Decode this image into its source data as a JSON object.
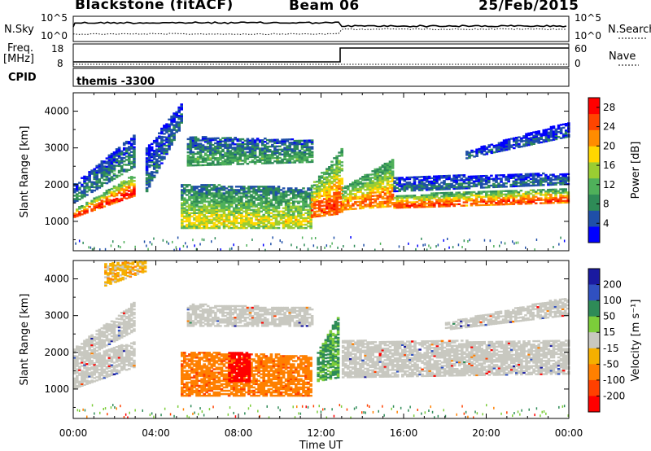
{
  "header": {
    "station": "Blackstone (fitACF)",
    "beam": "Beam 06",
    "date": "25/Feb/2015"
  },
  "left_labels": {
    "nsky": "N.Sky",
    "freq": "Freq.",
    "mhz": "[MHz]",
    "cpid": "CPID"
  },
  "right_labels": {
    "nsearch": "N.Search",
    "nave": "Nave"
  },
  "noise_panel": {
    "ticks_left": [
      "10^5",
      "10^0"
    ],
    "ticks_right": [
      "10^5",
      "10^0"
    ]
  },
  "freq_panel": {
    "ticks_left": [
      "18",
      "8"
    ],
    "ticks_right": [
      "60",
      "0"
    ]
  },
  "cpid_panel": {
    "text": "themis -3300"
  },
  "colors": {
    "power": [
      "#0000ff",
      "#1f4fa8",
      "#2e8b57",
      "#4fb05a",
      "#9acd32",
      "#ffd700",
      "#ff8c00",
      "#ff4500",
      "#ff0000"
    ],
    "velocity": [
      "#1a1aa0",
      "#3050c0",
      "#2e8b57",
      "#7ccd3a",
      "#c8c8c0",
      "#f5b000",
      "#ff8000",
      "#ff4000",
      "#ff0000"
    ],
    "ground_scatter": "#c8c8c0"
  },
  "chart_data": [
    {
      "type": "heatmap",
      "title": "Power",
      "xlabel": "Time UT",
      "ylabel": "Slant Range [km]",
      "x_ticks": [
        "00:00",
        "04:00",
        "08:00",
        "12:00",
        "16:00",
        "20:00",
        "00:00"
      ],
      "y_ticks": [
        1000,
        2000,
        3000,
        4000
      ],
      "xlim_hours": [
        0,
        24
      ],
      "ylim_km": [
        200,
        4500
      ],
      "colorbar": {
        "label": "Power [dB]",
        "ticks": [
          4,
          8,
          12,
          16,
          20,
          24,
          28
        ],
        "range": [
          0,
          30
        ]
      },
      "bands": [
        {
          "t": [
            0,
            3.0
          ],
          "r_start": [
            1100,
            1700
          ],
          "r_end": [
            1300,
            2300
          ],
          "value": 26
        },
        {
          "t": [
            0,
            3.0
          ],
          "r_start": [
            1500,
            2500
          ],
          "r_end": [
            2000,
            3400
          ],
          "value": 8
        },
        {
          "t": [
            3.5,
            5.2
          ],
          "r_start": [
            1800,
            3600
          ],
          "r_end": [
            3000,
            4200
          ],
          "value": 6
        },
        {
          "t": [
            5.2,
            11.5
          ],
          "r_start": [
            800,
            800
          ],
          "r_end": [
            2000,
            1900
          ],
          "value": 16
        },
        {
          "t": [
            5.5,
            11.5
          ],
          "r_start": [
            2500,
            2600
          ],
          "r_end": [
            3300,
            3200
          ],
          "value": 10
        },
        {
          "t": [
            11.5,
            13.0
          ],
          "r_start": [
            1100,
            1200
          ],
          "r_end": [
            2000,
            3000
          ],
          "value": 24
        },
        {
          "t": [
            13.0,
            15.5
          ],
          "r_start": [
            1300,
            1400
          ],
          "r_end": [
            1900,
            2700
          ],
          "value": 22
        },
        {
          "t": [
            15.5,
            24
          ],
          "r_start": [
            1350,
            1500
          ],
          "r_end": [
            1700,
            1900
          ],
          "value": 24
        },
        {
          "t": [
            15.5,
            24
          ],
          "r_start": [
            1800,
            2000
          ],
          "r_end": [
            2200,
            2300
          ],
          "value": 6
        },
        {
          "t": [
            19.0,
            24
          ],
          "r_start": [
            2700,
            3300
          ],
          "r_end": [
            2900,
            3700
          ],
          "value": 5
        }
      ]
    },
    {
      "type": "heatmap",
      "title": "Velocity",
      "xlabel": "Time UT",
      "ylabel": "Slant Range [km]",
      "x_ticks": [
        "00:00",
        "04:00",
        "08:00",
        "12:00",
        "16:00",
        "20:00",
        "00:00"
      ],
      "y_ticks": [
        1000,
        2000,
        3000,
        4000
      ],
      "xlim_hours": [
        0,
        24
      ],
      "ylim_km": [
        200,
        4500
      ],
      "colorbar": {
        "label": "Velocity [m s⁻¹]",
        "ticks": [
          200,
          100,
          50,
          15,
          -15,
          -50,
          -100,
          -200
        ]
      },
      "bands": [
        {
          "t": [
            0,
            3.0
          ],
          "r_start": [
            1000,
            1600
          ],
          "r_end": [
            1800,
            2300
          ],
          "value": 0
        },
        {
          "t": [
            0,
            3.0
          ],
          "r_start": [
            1700,
            2600
          ],
          "r_end": [
            2100,
            3400
          ],
          "value": 0
        },
        {
          "t": [
            1.5,
            3.5
          ],
          "r_start": [
            3800,
            4200
          ],
          "r_end": [
            4400,
            4500
          ],
          "value": -30
        },
        {
          "t": [
            5.2,
            11.5
          ],
          "r_start": [
            800,
            800
          ],
          "r_end": [
            2000,
            1900
          ],
          "value": -80
        },
        {
          "t": [
            7.5,
            8.5
          ],
          "r_start": [
            1200,
            1200
          ],
          "r_end": [
            2000,
            2000
          ],
          "value": -180
        },
        {
          "t": [
            5.5,
            11.5
          ],
          "r_start": [
            2700,
            2700
          ],
          "r_end": [
            3300,
            3200
          ],
          "value": 0
        },
        {
          "t": [
            11.8,
            12.8
          ],
          "r_start": [
            1200,
            1300
          ],
          "r_end": [
            2000,
            3000
          ],
          "value": 40
        },
        {
          "t": [
            13.0,
            24
          ],
          "r_start": [
            1300,
            1400
          ],
          "r_end": [
            2300,
            2300
          ],
          "value": 0
        },
        {
          "t": [
            18.0,
            24
          ],
          "r_start": [
            2600,
            3000
          ],
          "r_end": [
            2800,
            3500
          ],
          "value": 0
        }
      ]
    }
  ]
}
